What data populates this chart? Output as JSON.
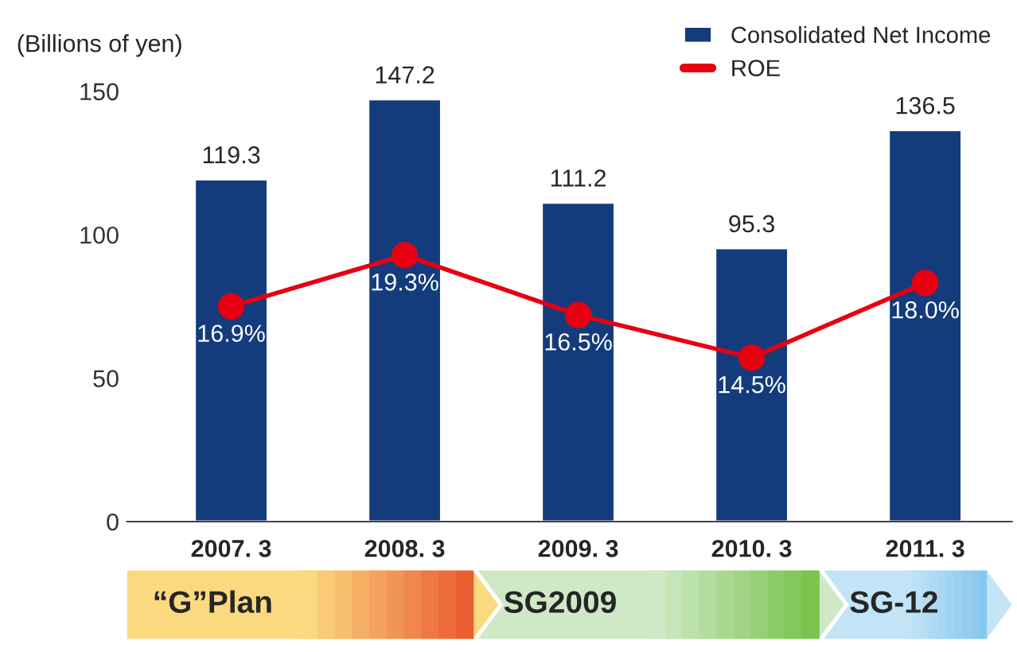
{
  "chart_data": {
    "type": "bar",
    "ylabel": "(Billions of yen)",
    "categories": [
      "2007. 3",
      "2008. 3",
      "2009. 3",
      "2010. 3",
      "2011. 3"
    ],
    "series": [
      {
        "name": "Consolidated Net Income",
        "color": "#143c7c",
        "values": [
          119.3,
          147.2,
          111.2,
          95.3,
          136.5
        ],
        "value_labels": [
          "119.3",
          "147.2",
          "111.2",
          "95.3",
          "136.5"
        ]
      },
      {
        "name": "ROE",
        "type": "line",
        "axis": "y2",
        "color": "#e60012",
        "marker": "circle",
        "values": [
          16.9,
          19.3,
          16.5,
          14.5,
          18.0
        ],
        "value_labels": [
          "16.9%",
          "19.3%",
          "16.5%",
          "14.5%",
          "18.0%"
        ]
      }
    ],
    "ylim": [
      0,
      150
    ],
    "yticks": [
      0,
      50,
      100,
      150
    ],
    "grid": false,
    "legend": "top right",
    "annotations": [
      "“G”Plan",
      "SG2009",
      "SG-12"
    ]
  }
}
